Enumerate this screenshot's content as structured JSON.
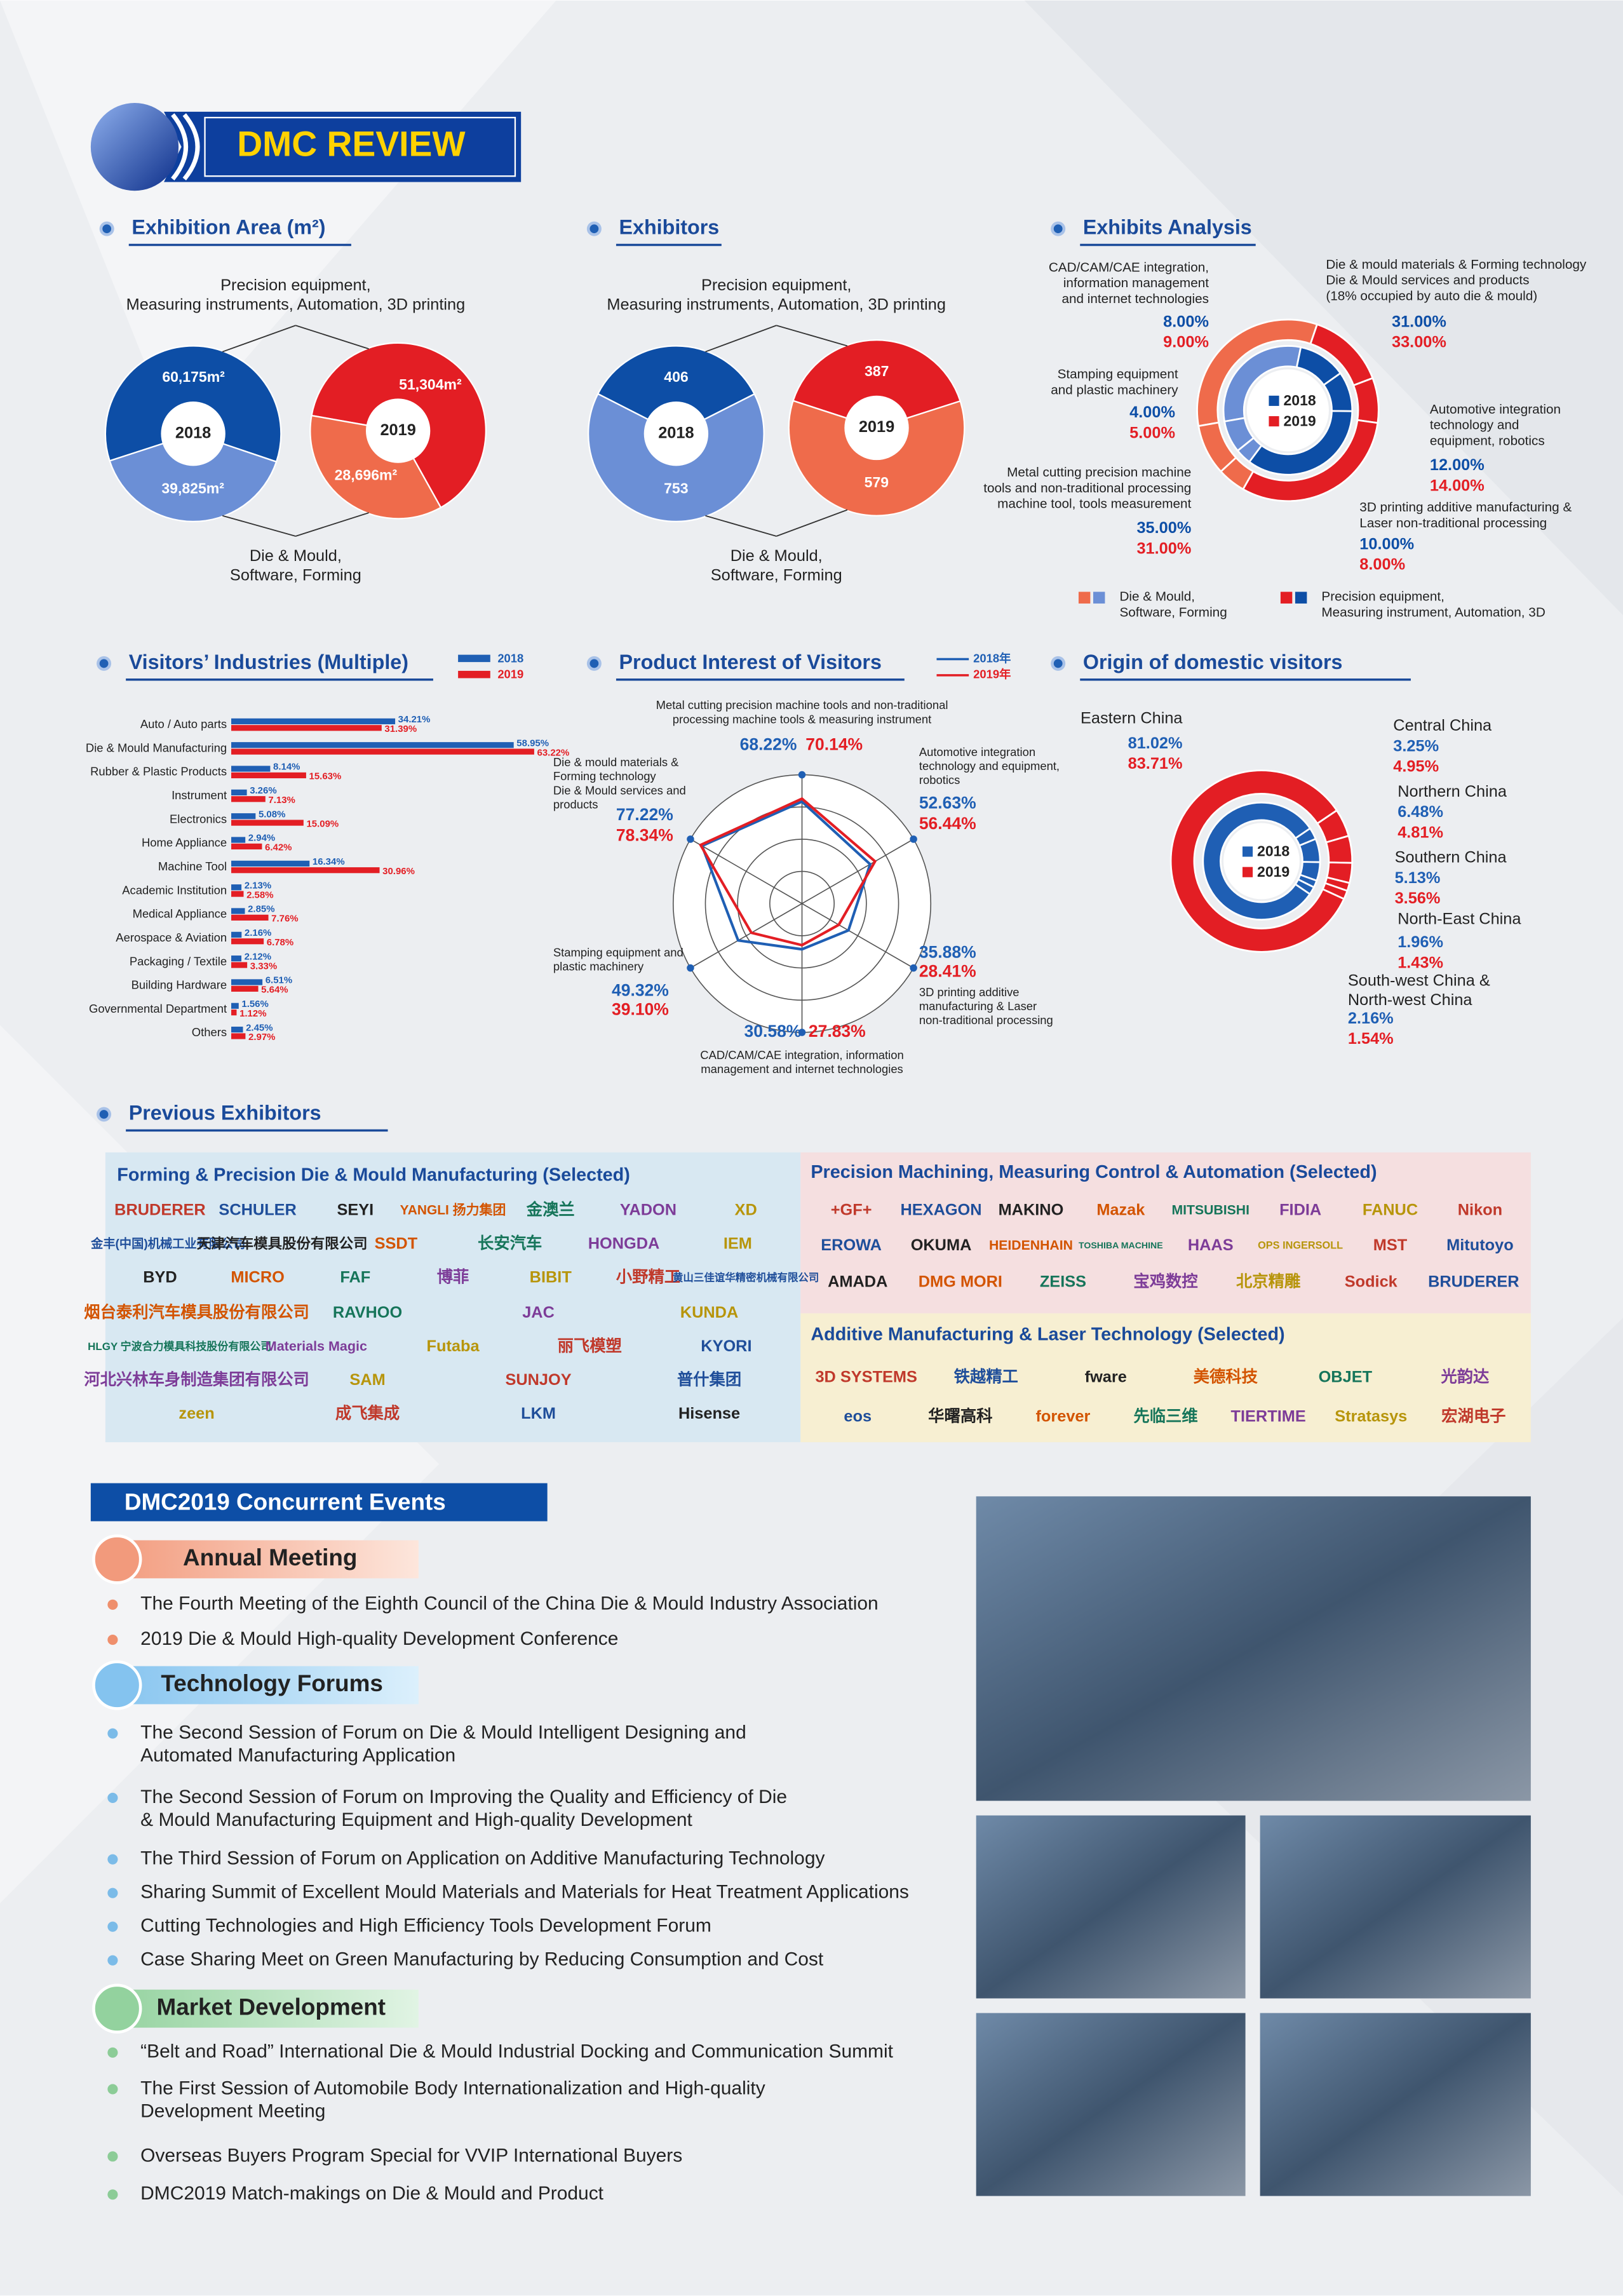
{
  "header": {
    "title": "DMC REVIEW"
  },
  "chart_data": [
    {
      "type": "pie",
      "title": "Exhibition Area (m²)",
      "categories": [
        "Precision equipment,\nMeasuring instruments, Automation, 3D printing",
        "Die & Mould,\nSoftware, Forming"
      ],
      "series": [
        {
          "name": "2018",
          "colors": [
            "#0d4ea6",
            "#6b8fd6"
          ],
          "values": [
            60175,
            39825
          ],
          "value_labels": [
            "60,175m²",
            "39,825m²"
          ]
        },
        {
          "name": "2019",
          "colors": [
            "#e31e24",
            "#ef6b4b"
          ],
          "values": [
            51304,
            28696
          ],
          "value_labels": [
            "51,304m²",
            "28,696m²"
          ]
        }
      ]
    },
    {
      "type": "pie",
      "title": "Exhibitors",
      "categories": [
        "Precision equipment,\nMeasuring instruments, Automation, 3D printing",
        "Die & Mould,\nSoftware, Forming"
      ],
      "series": [
        {
          "name": "2018",
          "colors": [
            "#0d4ea6",
            "#6b8fd6"
          ],
          "values": [
            406,
            753
          ]
        },
        {
          "name": "2019",
          "colors": [
            "#e31e24",
            "#ef6b4b"
          ],
          "values": [
            387,
            579
          ]
        }
      ]
    },
    {
      "type": "ring",
      "title": "Exhibits Analysis",
      "categories": [
        "Die & mould materials & Forming technology\nDie & Mould services and products\n(18% occupied by auto die & mould)",
        "Automotive integration\ntechnology and\nequipment, robotics",
        "3D printing additive manufacturing &\nLaser non-traditional processing",
        "Metal cutting precision machine\ntools and non-traditional processing\nmachine tool, tools measurement",
        "Stamping equipment\nand plastic machinery",
        "CAD/CAM/CAE integration,\ninformation management\nand internet technologies"
      ],
      "series": [
        {
          "name": "2018",
          "color": "#0d4ea6",
          "colors": [
            "#6b8fd6",
            "#0d4ea6",
            "#0d4ea6",
            "#0d4ea6",
            "#6b8fd6",
            "#6b8fd6"
          ],
          "values": [
            31,
            12,
            10,
            35,
            4,
            8
          ],
          "value_labels": [
            "31.00%",
            "12.00%",
            "10.00%",
            "35.00%",
            "4.00%",
            "8.00%"
          ]
        },
        {
          "name": "2019",
          "color": "#e31e24",
          "colors": [
            "#ef6b4b",
            "#e31e24",
            "#e31e24",
            "#e31e24",
            "#ef6b4b",
            "#ef6b4b"
          ],
          "values": [
            33,
            14,
            8,
            31,
            5,
            9
          ],
          "value_labels": [
            "33.00%",
            "14.00%",
            "8.00%",
            "31.00%",
            "5.00%",
            "9.00%"
          ]
        }
      ],
      "legend": [
        {
          "label": "Die & Mould,\nSoftware, Forming",
          "colors": [
            "#ef6b4b",
            "#6b8fd6"
          ]
        },
        {
          "label": "Precision equipment,\nMeasuring instrument, Automation, 3D",
          "colors": [
            "#e31e24",
            "#0d4ea6"
          ]
        }
      ]
    },
    {
      "type": "bar",
      "orientation": "horizontal",
      "title": "Visitors’ Industries (Multiple)",
      "categories": [
        "Auto / Auto parts",
        "Die & Mould Manufacturing",
        "Rubber & Plastic Products",
        "Instrument",
        "Electronics",
        "Home Appliance",
        "Machine Tool",
        "Academic Institution",
        "Medical Appliance",
        "Aerospace & Aviation",
        "Packaging / Textile",
        "Building Hardware",
        "Governmental Department",
        "Others"
      ],
      "series": [
        {
          "name": "2018",
          "color": "#1f5fb4",
          "values": [
            34.21,
            58.95,
            8.14,
            3.26,
            5.08,
            2.94,
            16.34,
            2.13,
            2.85,
            2.16,
            2.12,
            6.51,
            1.56,
            2.45
          ],
          "value_labels": [
            "34.21%",
            "58.95%",
            "8.14%",
            "3.26%",
            "5.08%",
            "2.94%",
            "16.34%",
            "2.13%",
            "2.85%",
            "2.16%",
            "2.12%",
            "6.51%",
            "1.56%",
            "2.45%"
          ]
        },
        {
          "name": "2019",
          "color": "#e31e24",
          "values": [
            31.39,
            63.22,
            15.63,
            7.13,
            15.09,
            6.42,
            30.96,
            2.58,
            7.76,
            6.78,
            3.33,
            5.64,
            1.12,
            2.97
          ],
          "value_labels": [
            "31.39%",
            "63.22%",
            "15.63%",
            "7.13%",
            "15.09%",
            "6.42%",
            "30.96%",
            "2.58%",
            "7.76%",
            "6.78%",
            "3.33%",
            "5.64%",
            "1.12%",
            "2.97%"
          ]
        }
      ]
    },
    {
      "type": "radar",
      "title": "Product Interest of Visitors",
      "categories": [
        "Metal cutting precision machine tools and non-traditional\nprocessing machine tools & measuring instrument",
        "Automotive integration\ntechnology and equipment,\nrobotics",
        "3D printing additive\nmanufacturing & Laser\nnon-traditional processing",
        "CAD/CAM/CAE integration, information\nmanagement and internet technologies",
        "Stamping equipment and\nplastic machinery",
        "Die & mould materials &\nForming technology\nDie & Mould services and\nproducts"
      ],
      "series": [
        {
          "name": "2018年",
          "color": "#1f5fb4",
          "values": [
            68.22,
            52.63,
            35.88,
            30.58,
            49.32,
            77.22
          ],
          "value_labels": [
            "68.22%",
            "52.63%",
            "35.88%",
            "30.58%",
            "49.32%",
            "77.22%"
          ]
        },
        {
          "name": "2019年",
          "color": "#e31e24",
          "values": [
            70.14,
            56.44,
            28.41,
            27.83,
            39.1,
            78.34
          ],
          "value_labels": [
            "70.14%",
            "56.44%",
            "28.41%",
            "27.83%",
            "39.10%",
            "78.34%"
          ]
        }
      ]
    },
    {
      "type": "ring",
      "title": "Origin of domestic visitors",
      "categories": [
        "Central China",
        "Northern China",
        "Southern China",
        "North-East China",
        "South-west China &\nNorth-west China",
        "Eastern China"
      ],
      "series": [
        {
          "name": "2018",
          "color": "#1f5fb4",
          "values": [
            3.25,
            6.48,
            5.13,
            1.96,
            2.16,
            81.02
          ],
          "value_labels": [
            "3.25%",
            "6.48%",
            "5.13%",
            "1.96%",
            "2.16%",
            "81.02%"
          ]
        },
        {
          "name": "2019",
          "color": "#e31e24",
          "values": [
            4.95,
            4.81,
            3.56,
            1.43,
            1.54,
            83.71
          ],
          "value_labels": [
            "4.95%",
            "4.81%",
            "3.56%",
            "1.43%",
            "1.54%",
            "83.71%"
          ]
        }
      ]
    }
  ],
  "previous_exhibitors": {
    "title": "Previous Exhibitors",
    "groups": [
      {
        "title": "Forming & Precision Die & Mould Manufacturing  (Selected)",
        "logos": [
          [
            "BRUDERER",
            "SCHULER",
            "SEYI",
            "YANGLI 扬力集团",
            "金澳兰",
            "YADON",
            "XD"
          ],
          [
            "金丰(中国)机械工业有限公司",
            "天津汽车模具股份有限公司",
            "SSDT",
            "长安汽车",
            "HONGDA",
            "IEM"
          ],
          [
            "BYD",
            "MICRO",
            "FAF",
            "博菲",
            "BIBIT",
            "小野精工",
            "黄山三佳谊华精密机械有限公司"
          ],
          [
            "烟台泰利汽车模具股份有限公司",
            "RAVHOO",
            "JAC",
            "KUNDA"
          ],
          [
            "HLGY 宁波合力模具科技股份有限公司",
            "Materials Magic",
            "Futaba",
            "丽飞模塑",
            "KYORI"
          ],
          [
            "河北兴林车身制造集团有限公司",
            "SAM",
            "SUNJOY",
            "普什集团"
          ],
          [
            "zeen",
            "成飞集成",
            "LKM",
            "Hisense"
          ]
        ]
      },
      {
        "title": "Precision Machining, Measuring Control & Automation (Selected)",
        "logos": [
          [
            "+GF+",
            "HEXAGON",
            "MAKINO",
            "Mazak",
            "MITSUBISHI",
            "FIDIA",
            "FANUC",
            "Nikon"
          ],
          [
            "EROWA",
            "OKUMA",
            "HEIDENHAIN",
            "TOSHIBA MACHINE",
            "HAAS",
            "OPS INGERSOLL",
            "MST",
            "Mitutoyo"
          ],
          [
            "AMADA",
            "DMG MORI",
            "ZEISS",
            "宝鸡数控",
            "北京精雕",
            "Sodick",
            "BRUDERER"
          ]
        ]
      },
      {
        "title": "Additive Manufacturing & Laser Technology (Selected)",
        "logos": [
          [
            "3D SYSTEMS",
            "铁越精工",
            "fware",
            "美德科技",
            "OBJET",
            "光韵达"
          ],
          [
            "eos",
            "华曙高科",
            "forever",
            "先临三维",
            "TIERTIME",
            "Stratasys",
            "宏湖电子"
          ]
        ]
      }
    ]
  },
  "concurrent_events": {
    "title": "DMC2019 Concurrent Events",
    "sections": [
      {
        "title": "Annual Meeting",
        "items": [
          "The Fourth Meeting of the Eighth Council of the China Die & Mould Industry Association",
          "2019 Die & Mould High-quality Development Conference"
        ]
      },
      {
        "title": "Technology Forums",
        "items": [
          "The Second Session of Forum on Die & Mould Intelligent Designing and\nAutomated Manufacturing Application",
          "The Second Session of Forum on Improving the Quality and Efficiency of Die\n& Mould Manufacturing Equipment and High-quality Development",
          "The Third Session of Forum on Application on Additive Manufacturing Technology",
          "Sharing Summit of Excellent Mould Materials and Materials for Heat Treatment Applications",
          "Cutting Technologies and High Efficiency Tools Development Forum",
          "Case Sharing Meet on Green Manufacturing by Reducing Consumption and Cost"
        ]
      },
      {
        "title": "Market Development",
        "items": [
          "“Belt and Road” International Die & Mould Industrial Docking and Communication Summit",
          "The First Session of Automobile Body Internationalization and High-quality\nDevelopment Meeting",
          "Overseas Buyers Program Special for VVIP International Buyers",
          "DMC2019 Match-makings on Die & Mould and Product"
        ]
      }
    ]
  }
}
